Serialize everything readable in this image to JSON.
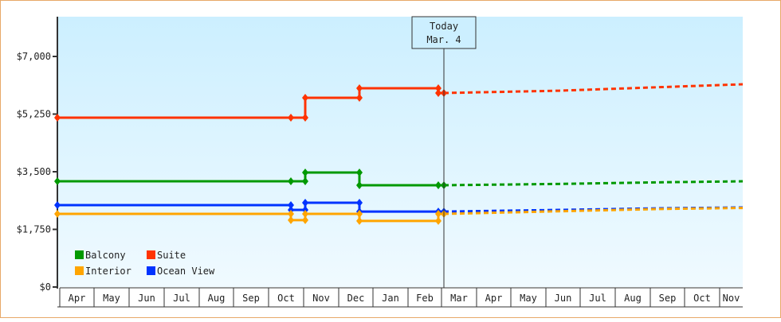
{
  "chart_data": {
    "type": "line",
    "title": "",
    "xlabel": "",
    "ylabel": "",
    "ylim": [
      0,
      8200
    ],
    "y_ticks": [
      "$0",
      "$1,750",
      "$3,500",
      "$5,250",
      "$7,000"
    ],
    "y_tick_values": [
      0,
      1750,
      3500,
      5250,
      7000
    ],
    "x_ticks": [
      "Apr",
      "May",
      "Jun",
      "Jul",
      "Aug",
      "Sep",
      "Oct",
      "Nov",
      "Dec",
      "Jan",
      "Feb",
      "Mar",
      "Apr",
      "May",
      "Jun",
      "Jul",
      "Aug",
      "Sep",
      "Oct",
      "Nov"
    ],
    "today_marker": {
      "line1": "Today",
      "line2": "Mar. 4"
    },
    "legend": [
      {
        "name": "Balcony",
        "color": "#009900"
      },
      {
        "name": "Suite",
        "color": "#ff3300"
      },
      {
        "name": "Interior",
        "color": "#ffa500"
      },
      {
        "name": "Ocean View",
        "color": "#0033ff"
      }
    ],
    "series": [
      {
        "name": "Suite",
        "color": "#ff3300",
        "historical": [
          [
            "Apr",
            5140
          ],
          [
            "Oct",
            5140
          ],
          [
            "Oct-late",
            5140
          ],
          [
            "Oct-late",
            5745
          ],
          [
            "Dec",
            5745
          ],
          [
            "Dec",
            6035
          ],
          [
            "Feb",
            6035
          ],
          [
            "Feb",
            5890
          ],
          [
            "Mar 4",
            5890
          ]
        ],
        "forecast": [
          [
            "Mar 4",
            5890
          ],
          [
            "Jun",
            5960
          ],
          [
            "Sep",
            6070
          ],
          [
            "Nov",
            6155
          ]
        ]
      },
      {
        "name": "Balcony",
        "color": "#009900",
        "historical": [
          [
            "Apr",
            3210
          ],
          [
            "Oct",
            3210
          ],
          [
            "Oct-late",
            3210
          ],
          [
            "Oct-late",
            3475
          ],
          [
            "Dec",
            3475
          ],
          [
            "Dec",
            3090
          ],
          [
            "Feb",
            3090
          ],
          [
            "Mar 4",
            3090
          ]
        ],
        "forecast": [
          [
            "Mar 4",
            3090
          ],
          [
            "Jun",
            3130
          ],
          [
            "Sep",
            3180
          ],
          [
            "Nov",
            3210
          ]
        ]
      },
      {
        "name": "Ocean View",
        "color": "#0033ff",
        "historical": [
          [
            "Apr",
            2486
          ],
          [
            "Oct",
            2486
          ],
          [
            "Oct",
            2340
          ],
          [
            "Oct-late",
            2340
          ],
          [
            "Oct-late",
            2560
          ],
          [
            "Dec",
            2560
          ],
          [
            "Dec",
            2290
          ],
          [
            "Feb",
            2290
          ],
          [
            "Mar 4",
            2290
          ]
        ],
        "forecast": [
          [
            "Mar 4",
            2290
          ],
          [
            "Jun",
            2340
          ],
          [
            "Sep",
            2390
          ],
          [
            "Nov",
            2415
          ]
        ]
      },
      {
        "name": "Interior",
        "color": "#ffa500",
        "historical": [
          [
            "Apr",
            2220
          ],
          [
            "Oct",
            2220
          ],
          [
            "Oct",
            2030
          ],
          [
            "Oct-late",
            2030
          ],
          [
            "Oct-late",
            2220
          ],
          [
            "Dec",
            2220
          ],
          [
            "Dec",
            2005
          ],
          [
            "Feb",
            2005
          ],
          [
            "Feb",
            2220
          ],
          [
            "Mar 4",
            2220
          ]
        ],
        "forecast": [
          [
            "Mar 4",
            2220
          ],
          [
            "Jun",
            2300
          ],
          [
            "Sep",
            2370
          ],
          [
            "Nov",
            2400
          ]
        ]
      }
    ]
  }
}
